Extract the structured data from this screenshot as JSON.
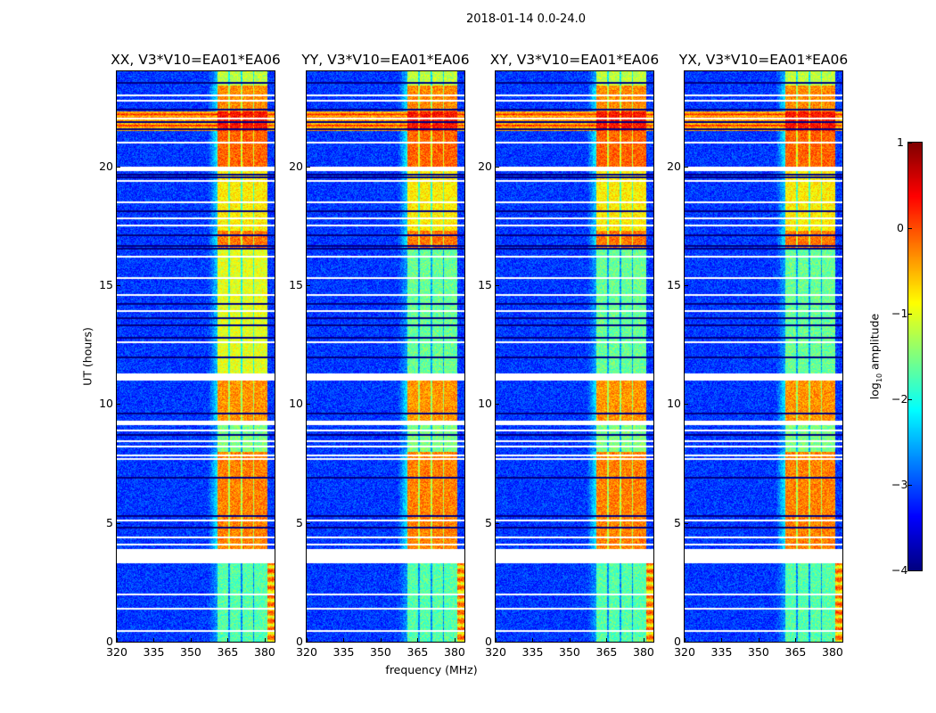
{
  "figure": {
    "suptitle": "2018-01-14 0.0-24.0"
  },
  "chart_data": {
    "type": "heatmap",
    "xlabel": "frequency (MHz)",
    "ylabel": "UT (hours)",
    "xlim": [
      320,
      384
    ],
    "ylim": [
      0,
      24
    ],
    "xticks": [
      320,
      335,
      350,
      365,
      380
    ],
    "yticks": [
      0,
      5,
      10,
      15,
      20
    ],
    "colorbar": {
      "label_prefix": "log",
      "label_sub": "10",
      "label_suffix": " amplitude",
      "range": [
        -4,
        1
      ],
      "ticks": [
        1,
        0,
        -1,
        -2,
        -3,
        -4
      ],
      "tick_labels": [
        "1",
        "0",
        "−1",
        "−2",
        "−3",
        "−4"
      ],
      "colormap": "jet"
    },
    "panels": [
      {
        "title": "XX, V3*V10=EA01*EA06",
        "quiet_band_offset": 0.6
      },
      {
        "title": "YY, V3*V10=EA01*EA06",
        "quiet_band_offset": 0.0
      },
      {
        "title": "XY, V3*V10=EA01*EA06",
        "quiet_band_offset": 0.0
      },
      {
        "title": "YX, V3*V10=EA01*EA06",
        "quiet_band_offset": 0.0
      }
    ],
    "background_level": -3.1,
    "rfi_band_mhz": [
      361,
      381
    ],
    "subband_gaps_mhz": [
      365.5,
      370.5,
      375.5
    ],
    "segments": [
      {
        "from": 0.0,
        "to": 3.3,
        "band": -1.7,
        "edge_flare": true
      },
      {
        "from": 3.9,
        "to": 8.0,
        "band": -0.25
      },
      {
        "from": 8.0,
        "to": 9.2,
        "band": -1.5
      },
      {
        "from": 9.3,
        "to": 11.0,
        "band": -0.35
      },
      {
        "from": 11.3,
        "to": 16.5,
        "band": -1.6,
        "quiet": true
      },
      {
        "from": 16.5,
        "to": 17.3,
        "band": -0.2
      },
      {
        "from": 17.3,
        "to": 19.8,
        "band": -0.8
      },
      {
        "from": 20.0,
        "to": 21.5,
        "band": -0.1
      },
      {
        "from": 21.5,
        "to": 22.3,
        "band": 0.3,
        "full_row": -0.2
      },
      {
        "from": 22.3,
        "to": 23.4,
        "band": -0.3
      },
      {
        "from": 23.4,
        "to": 24.0,
        "band": -1.2
      }
    ],
    "flagged_hours": [
      0.45,
      1.4,
      2.0,
      3.35,
      3.45,
      3.6,
      3.75,
      3.85,
      4.1,
      4.4,
      5.1,
      7.7,
      7.85,
      8.2,
      8.45,
      8.9,
      9.15,
      9.25,
      11.05,
      11.15,
      11.25,
      12.6,
      13.9,
      14.6,
      15.3,
      16.2,
      17.5,
      17.8,
      18.5,
      19.4,
      19.85,
      19.95,
      21.0,
      22.0,
      22.75,
      23.0
    ],
    "dark_hours": [
      4.8,
      5.3,
      6.9,
      8.7,
      9.6,
      11.95,
      12.8,
      13.3,
      13.6,
      14.2,
      16.55,
      16.65,
      17.1,
      18.1,
      19.55,
      19.65,
      21.55,
      21.85,
      22.4,
      23.5
    ]
  }
}
